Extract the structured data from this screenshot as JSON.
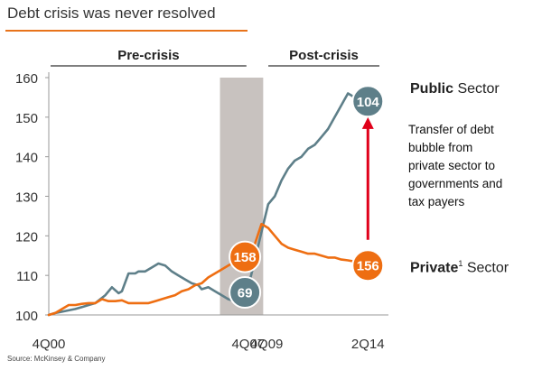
{
  "title": "Debt crisis was never resolved",
  "source": "Source: McKinsey & Company",
  "colors": {
    "public": "#5E7F89",
    "private": "#EE6E12",
    "crisis_band": "#C8C2BF",
    "arrow": "#E0001A",
    "accent": "#E8731B"
  },
  "annotation": [
    "Transfer of debt",
    "bubble from",
    "private sector to",
    "governments and",
    "tax payers"
  ],
  "labels": {
    "public": {
      "bold": "Public",
      "light": " Sector"
    },
    "private": {
      "bold": "Private",
      "sup": "1",
      "light": " Sector"
    }
  },
  "chart_data": {
    "type": "line",
    "title": "Debt crisis was never resolved",
    "ylim": [
      100,
      160
    ],
    "yticks": [
      100,
      110,
      120,
      130,
      140,
      150,
      160
    ],
    "x_range": [
      0,
      100
    ],
    "xticks": [
      {
        "x": 0,
        "label": "4Q00"
      },
      {
        "x": 60,
        "label": "4Q07"
      },
      {
        "x": 65.5,
        "label": "4Q09"
      },
      {
        "x": 96,
        "label": "2Q14"
      }
    ],
    "periods": [
      {
        "label": "Pre-crisis",
        "from": 0,
        "to": 60
      },
      {
        "label": "Post-crisis",
        "from": 65.5,
        "to": 100
      }
    ],
    "crisis_band": [
      51.5,
      64.5
    ],
    "series": [
      {
        "name": "Public Sector",
        "color_key": "public",
        "x": [
          0,
          2,
          5,
          8,
          10,
          12,
          14,
          17,
          19,
          21,
          22,
          24,
          26,
          27,
          29,
          31,
          33,
          35,
          37,
          39,
          41,
          43,
          45,
          46,
          48,
          50,
          52,
          54,
          56,
          57,
          58,
          60,
          62,
          64,
          66,
          68,
          70,
          72,
          74,
          76,
          78,
          80,
          82,
          84,
          86,
          88,
          90,
          92,
          94,
          96
        ],
        "y": [
          100,
          100.5,
          101,
          101.5,
          102,
          102.5,
          103,
          105,
          107,
          105.5,
          106,
          110.5,
          110.5,
          111,
          111,
          112,
          113,
          112.5,
          111,
          110,
          109,
          108,
          107.5,
          106.5,
          107,
          106,
          105,
          104,
          103.5,
          103,
          103,
          107,
          114,
          121,
          128,
          130,
          134,
          137,
          139,
          140,
          142,
          143,
          145,
          147,
          150,
          153,
          156,
          155,
          153,
          154
        ]
      },
      {
        "name": "Private Sector",
        "color_key": "private",
        "x": [
          0,
          2,
          4,
          6,
          8,
          10,
          12,
          14,
          16,
          18,
          20,
          22,
          24,
          26,
          28,
          30,
          32,
          34,
          36,
          38,
          40,
          42,
          44,
          46,
          48,
          50,
          52,
          54,
          56,
          58,
          60,
          62,
          64,
          66,
          68,
          70,
          72,
          74,
          76,
          78,
          80,
          82,
          84,
          86,
          88,
          90,
          92,
          94,
          96
        ],
        "y": [
          100,
          100.5,
          101.5,
          102.5,
          102.5,
          102.8,
          103,
          103,
          104,
          103.5,
          103.5,
          103.7,
          103,
          103,
          103,
          103,
          103.5,
          104,
          104.5,
          105,
          106,
          106.5,
          107.5,
          108,
          109.5,
          110.5,
          111.5,
          112.5,
          113.5,
          114.5,
          115.5,
          118,
          123,
          122,
          120,
          118,
          117,
          116.5,
          116,
          115.5,
          115.5,
          115,
          114.5,
          114.5,
          114,
          113.8,
          113.5,
          113,
          112.5
        ]
      }
    ],
    "markers": [
      {
        "series": "Public Sector",
        "x": 59,
        "y": 105.7,
        "label": "69"
      },
      {
        "series": "Private Sector",
        "x": 59,
        "y": 114.7,
        "label": "158"
      },
      {
        "series": "Public Sector",
        "x": 96,
        "y": 154,
        "label": "104"
      },
      {
        "series": "Private Sector",
        "x": 96,
        "y": 112.5,
        "label": "156"
      }
    ],
    "arrow": {
      "x": 96,
      "from_y": 119,
      "to_y": 150,
      "note": "Transfer of debt bubble from private sector to governments and tax payers"
    }
  }
}
